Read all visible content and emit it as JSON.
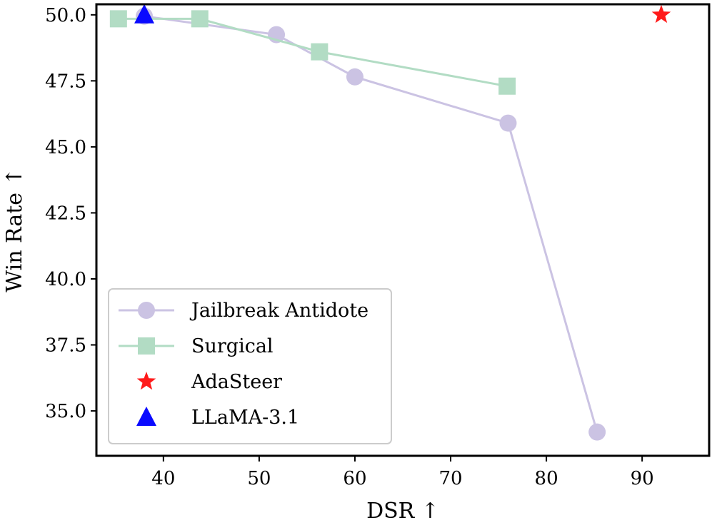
{
  "chart_data": {
    "type": "line",
    "title": "",
    "xlabel": "DSR ↑",
    "ylabel": "Win Rate ↑",
    "xlim": [
      33,
      97
    ],
    "ylim": [
      33.3,
      50.4
    ],
    "xticks": [
      40,
      50,
      60,
      70,
      80,
      90
    ],
    "yticks": [
      35.0,
      37.5,
      40.0,
      42.5,
      45.0,
      47.5,
      50.0
    ],
    "xtick_labels": [
      "40",
      "50",
      "60",
      "70",
      "80",
      "90"
    ],
    "ytick_labels": [
      "35.0",
      "37.5",
      "40.0",
      "42.5",
      "45.0",
      "47.5",
      "50.0"
    ],
    "grid": false,
    "legend_position": "lower-left",
    "series": [
      {
        "name": "Jailbreak Antidote",
        "marker": "circle",
        "color": "#cbc3e3",
        "line": true,
        "x": [
          38.0,
          51.8,
          60.0,
          76.0,
          85.3
        ],
        "y": [
          49.95,
          49.25,
          47.65,
          45.9,
          34.2
        ]
      },
      {
        "name": "Surgical",
        "marker": "square",
        "color": "#b2dcc4",
        "line": true,
        "x": [
          35.3,
          43.8,
          56.3,
          75.9
        ],
        "y": [
          49.85,
          49.85,
          48.6,
          47.3
        ]
      },
      {
        "name": "AdaSteer",
        "marker": "star",
        "color": "#ff1a1a",
        "line": false,
        "x": [
          92.0
        ],
        "y": [
          50.0
        ]
      },
      {
        "name": "LLaMA-3.1",
        "marker": "triangle",
        "color": "#0a0aff",
        "line": false,
        "x": [
          38.0
        ],
        "y": [
          50.0
        ]
      }
    ]
  }
}
